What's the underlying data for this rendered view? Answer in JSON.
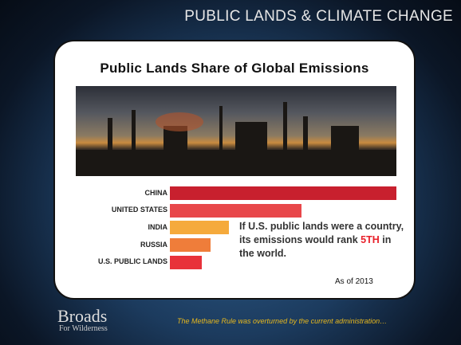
{
  "header": {
    "title": "PUBLIC LANDS & CLIMATE CHANGE"
  },
  "chart_data": {
    "type": "bar",
    "orientation": "horizontal",
    "title": "Public Lands Share of Global Emissions",
    "categories": [
      "CHINA",
      "UNITED STATES",
      "INDIA",
      "RUSSIA",
      "U.S. PUBLIC LANDS"
    ],
    "values": [
      10,
      5.8,
      2.6,
      1.8,
      1.4
    ],
    "colors": [
      "#c8202e",
      "#e8474a",
      "#f5aa3c",
      "#ef7d3a",
      "#e8323a"
    ],
    "xlim": [
      0,
      10
    ],
    "annotation": {
      "before": "If U.S. public lands were a country, its emissions would rank",
      "highlight": "5TH",
      "after": "in the world."
    },
    "note": "As of 2013"
  },
  "footer": {
    "logo_main": "Broads",
    "logo_sub": "For Wilderness",
    "caption": "The Methane Rule was overturned by the current administration…"
  }
}
